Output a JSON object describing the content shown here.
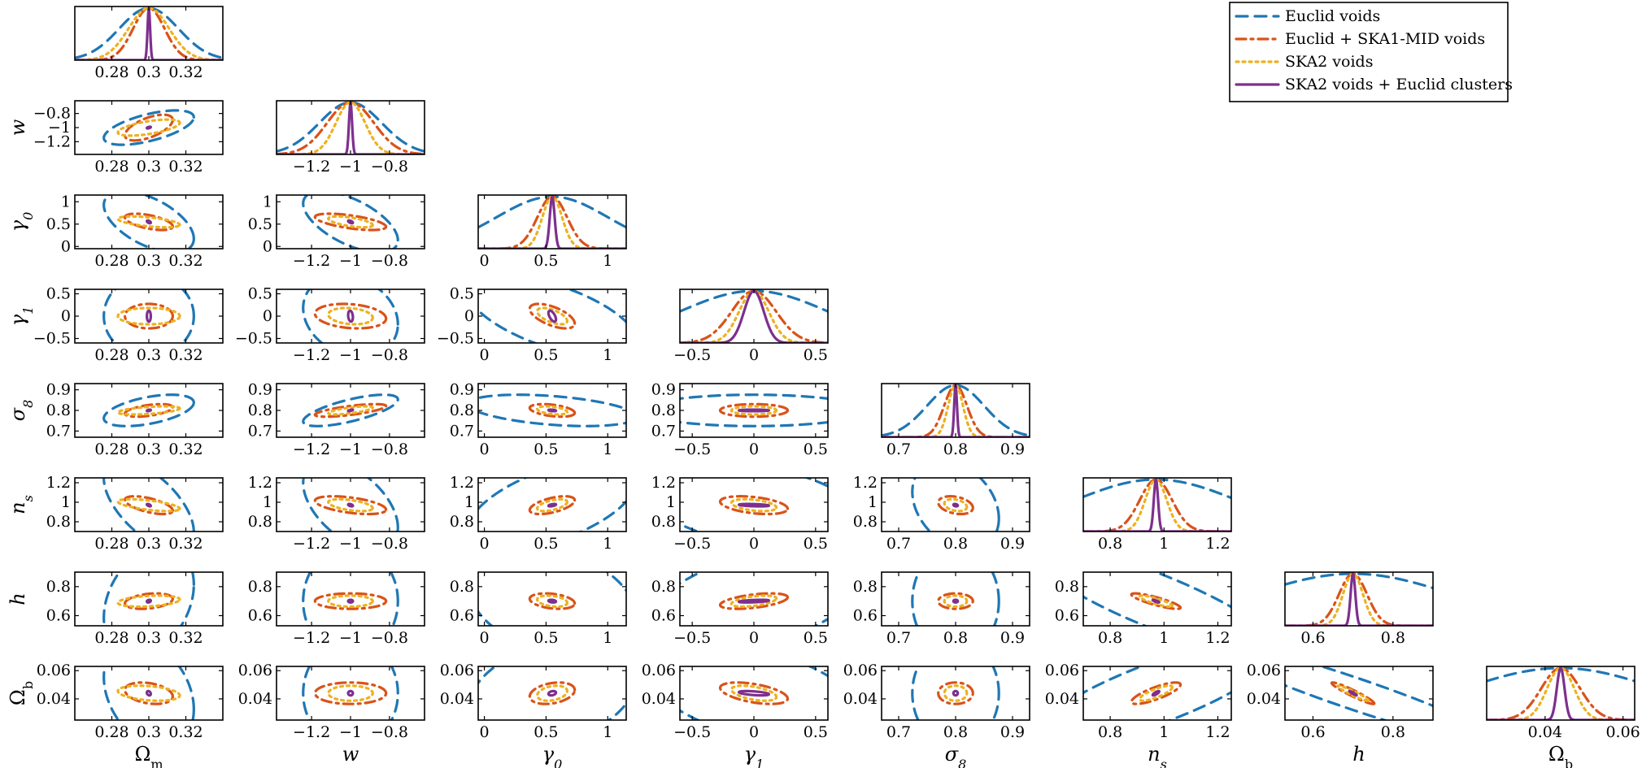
{
  "chart_data": {
    "type": "triangle-corner-plot",
    "parameters": [
      {
        "key": "Om",
        "label": "Ωm",
        "label_base": "Ω",
        "label_sub": "m",
        "italic": false,
        "fid": 0.3,
        "lim": [
          0.26,
          0.34
        ],
        "ticks": [
          0.28,
          0.3,
          0.32
        ],
        "tick_labels": [
          "0.28",
          "0.3",
          "0.32"
        ],
        "sigma": {
          "euclid": 0.016,
          "euclid_ska1": 0.0085,
          "ska2": 0.011,
          "ska2_clusters": 0.0007
        }
      },
      {
        "key": "w",
        "label": "w",
        "label_base": "w",
        "label_sub": "",
        "italic": true,
        "fid": -1,
        "lim": [
          -1.38,
          -0.62
        ],
        "ticks": [
          -1.2,
          -1,
          -0.8
        ],
        "tick_labels": [
          "−1.2",
          "−1",
          "−0.8"
        ],
        "sigma": {
          "euclid": 0.16,
          "euclid_ska1": 0.12,
          "ska2": 0.075,
          "ska2_clusters": 0.008
        }
      },
      {
        "key": "g0",
        "label": "γ0",
        "label_base": "γ",
        "label_sub": "0",
        "italic": true,
        "fid": 0.55,
        "lim": [
          -0.05,
          1.15
        ],
        "ticks": [
          0,
          0.5,
          1
        ],
        "tick_labels": [
          "0",
          "0.5",
          "1"
        ],
        "sigma": {
          "euclid": 0.45,
          "euclid_ska1": 0.12,
          "ska2": 0.08,
          "ska2_clusters": 0.02
        }
      },
      {
        "key": "g1",
        "label": "γ1",
        "label_base": "γ",
        "label_sub": "1",
        "italic": true,
        "fid": 0.0,
        "lim": [
          -0.6,
          0.6
        ],
        "ticks": [
          -0.5,
          0,
          0.5
        ],
        "tick_labels": [
          "−0.5",
          "0",
          "0.5"
        ],
        "sigma": {
          "euclid": 0.6,
          "euclid_ska1": 0.18,
          "ska2": 0.12,
          "ska2_clusters": 0.08
        }
      },
      {
        "key": "s8",
        "label": "σ8",
        "label_base": "σ",
        "label_sub": "8",
        "italic": true,
        "fid": 0.8,
        "lim": [
          0.67,
          0.93
        ],
        "ticks": [
          0.7,
          0.8,
          0.9
        ],
        "tick_labels": [
          "0.7",
          "0.8",
          "0.9"
        ],
        "sigma": {
          "euclid": 0.05,
          "euclid_ska1": 0.02,
          "ska2": 0.013,
          "ska2_clusters": 0.0025
        }
      },
      {
        "key": "ns",
        "label": "ns",
        "label_base": "n",
        "label_sub": "s",
        "italic": true,
        "fid": 0.97,
        "lim": [
          0.7,
          1.25
        ],
        "ticks": [
          0.8,
          1,
          1.2
        ],
        "tick_labels": [
          "0.8",
          "1",
          "1.2"
        ],
        "sigma": {
          "euclid": 0.3,
          "euclid_ska1": 0.06,
          "ska2": 0.04,
          "ska2_clusters": 0.008
        }
      },
      {
        "key": "h",
        "label": "h",
        "label_base": "h",
        "label_sub": "",
        "italic": true,
        "fid": 0.7,
        "lim": [
          0.53,
          0.9
        ],
        "ticks": [
          0.6,
          0.8
        ],
        "tick_labels": [
          "0.6",
          "0.8"
        ],
        "sigma": {
          "euclid": 0.25,
          "euclid_ska1": 0.035,
          "ska2": 0.025,
          "ska2_clusters": 0.006
        }
      },
      {
        "key": "Ob",
        "label": "Ωb",
        "label_base": "Ω",
        "label_sub": "b",
        "italic": false,
        "fid": 0.044,
        "lim": [
          0.025,
          0.063
        ],
        "ticks": [
          0.04,
          0.06
        ],
        "tick_labels": [
          "0.04",
          "0.06"
        ],
        "sigma": {
          "euclid": 0.025,
          "euclid_ska1": 0.005,
          "ska2": 0.0035,
          "ska2_clusters": 0.001
        }
      }
    ],
    "correlation_rho": {
      "Om,w": 0.6,
      "Om,g0": -0.55,
      "Om,g1": 0.0,
      "Om,s8": 0.5,
      "Om,ns": -0.6,
      "Om,h": 0.3,
      "Om,Ob": -0.3,
      "w,g0": -0.6,
      "w,g1": -0.2,
      "w,s8": 0.7,
      "w,ns": -0.5,
      "w,h": 0.0,
      "w,Ob": 0.0,
      "g0,g1": -0.6,
      "g0,s8": -0.4,
      "g0,ns": 0.55,
      "g0,h": -0.3,
      "g0,Ob": 0.3,
      "g1,s8": 0.0,
      "g1,ns": -0.4,
      "g1,h": 0.5,
      "g1,Ob": -0.5,
      "s8,ns": -0.3,
      "s8,h": 0.0,
      "s8,Ob": 0.0,
      "ns,h": -0.85,
      "ns,Ob": 0.8,
      "h,Ob": -0.95
    },
    "series": [
      {
        "key": "euclid",
        "name": "Euclid voids",
        "color": "#1f77b4",
        "dash": "dashed"
      },
      {
        "key": "euclid_ska1",
        "name": "Euclid + SKA1-MID voids",
        "color": "#d95319",
        "dash": "dashdot"
      },
      {
        "key": "ska2",
        "name": "SKA2 voids",
        "color": "#edb120",
        "dash": "dotted"
      },
      {
        "key": "ska2_clusters",
        "name": "SKA2 voids + Euclid clusters",
        "color": "#7e2f8e",
        "dash": "solid"
      }
    ],
    "legend_position": "top-right"
  }
}
